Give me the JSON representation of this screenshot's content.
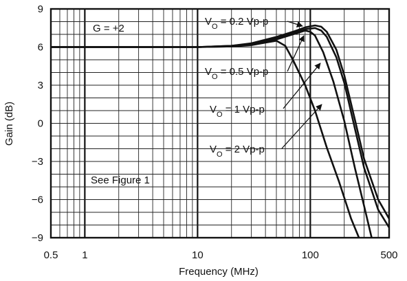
{
  "chart_data": {
    "type": "line",
    "xlabel": "Frequency (MHz)",
    "ylabel": "Gain (dB)",
    "x_scale": "log",
    "xlim": [
      0.5,
      500
    ],
    "ylim": [
      -9,
      9
    ],
    "x_ticks": [
      "0.5",
      "1",
      "10",
      "100",
      "500"
    ],
    "y_ticks": [
      "9",
      "6",
      "3",
      "0",
      "−3",
      "−6",
      "−9"
    ],
    "grid": true,
    "annotations": [
      "G = +2",
      "See Figure 1"
    ],
    "series": [
      {
        "name": "VO = 0.2 Vp-p",
        "label_main": "V",
        "label_sub": "O",
        "label_rest": " = 0.2 Vp-p",
        "x": [
          0.5,
          1,
          10,
          20,
          30,
          50,
          70,
          90,
          110,
          125,
          140,
          170,
          200,
          250,
          300,
          400,
          500
        ],
        "y": [
          6,
          6,
          6,
          6.1,
          6.3,
          6.8,
          7.2,
          7.55,
          7.7,
          7.6,
          7.2,
          5.8,
          3.8,
          0.2,
          -2.8,
          -6.0,
          -7.5
        ]
      },
      {
        "name": "VO = 0.5 Vp-p",
        "label_main": "V",
        "label_sub": "O",
        "label_rest": " = 0.5 Vp-p",
        "x": [
          0.5,
          1,
          10,
          20,
          30,
          50,
          70,
          90,
          110,
          125,
          140,
          170,
          200,
          250,
          300,
          400,
          500
        ],
        "y": [
          6,
          6,
          6,
          6.1,
          6.25,
          6.7,
          7.1,
          7.4,
          7.5,
          7.3,
          6.8,
          5.2,
          3.2,
          -0.5,
          -3.5,
          -6.8,
          -8.2
        ]
      },
      {
        "name": "VO = 1 Vp-p",
        "label_main": "V",
        "label_sub": "O",
        "label_rest": " = 1 Vp-p",
        "x": [
          0.5,
          1,
          10,
          20,
          30,
          50,
          70,
          90,
          100,
          110,
          130,
          160,
          200,
          250,
          300,
          350
        ],
        "y": [
          6,
          6,
          6,
          6.05,
          6.2,
          6.6,
          7.0,
          7.3,
          7.2,
          6.9,
          5.6,
          3.3,
          0.2,
          -3.6,
          -6.5,
          -9
        ]
      },
      {
        "name": "VO = 2 Vp-p",
        "label_main": "V",
        "label_sub": "O",
        "label_rest": " = 2 Vp-p",
        "x": [
          0.5,
          1,
          10,
          20,
          30,
          40,
          50,
          60,
          70,
          90,
          110,
          140,
          180,
          230,
          270
        ],
        "y": [
          6,
          6,
          6,
          6.05,
          6.15,
          6.35,
          6.5,
          6.1,
          5.0,
          3.0,
          1.0,
          -1.9,
          -4.6,
          -7.5,
          -9
        ]
      }
    ]
  }
}
